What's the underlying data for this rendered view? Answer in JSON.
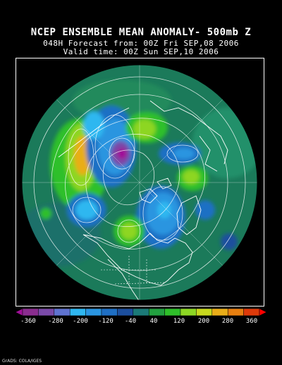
{
  "title": {
    "line1": "NCEP ENSEMBLE MEAN ANOMALY- 500mb Z",
    "line2": "048H Forecast from: 00Z Fri SEP,08 2006",
    "line3": "Valid time: 00Z Sun SEP,10 2006"
  },
  "colorbar": {
    "colors": [
      "#a01098",
      "#8a2d8f",
      "#7a4aa8",
      "#5f73d0",
      "#2fb7f0",
      "#2a95e0",
      "#1f6fc4",
      "#1c4f9e",
      "#1b7a78",
      "#22a040",
      "#2fc02a",
      "#8dd624",
      "#c8d81e",
      "#e9ad19",
      "#e77f10",
      "#de3a0a",
      "#ff0000"
    ],
    "tick_labels": [
      "-360",
      "-280",
      "-200",
      "-120",
      "-40",
      "40",
      "120",
      "200",
      "280",
      "360"
    ]
  },
  "credit": "GrADS: COLA/IGES",
  "map": {
    "background_color": "#1b7a5a",
    "features": [
      "500mb height anomaly shading",
      "height contour lines",
      "continent outlines"
    ]
  }
}
